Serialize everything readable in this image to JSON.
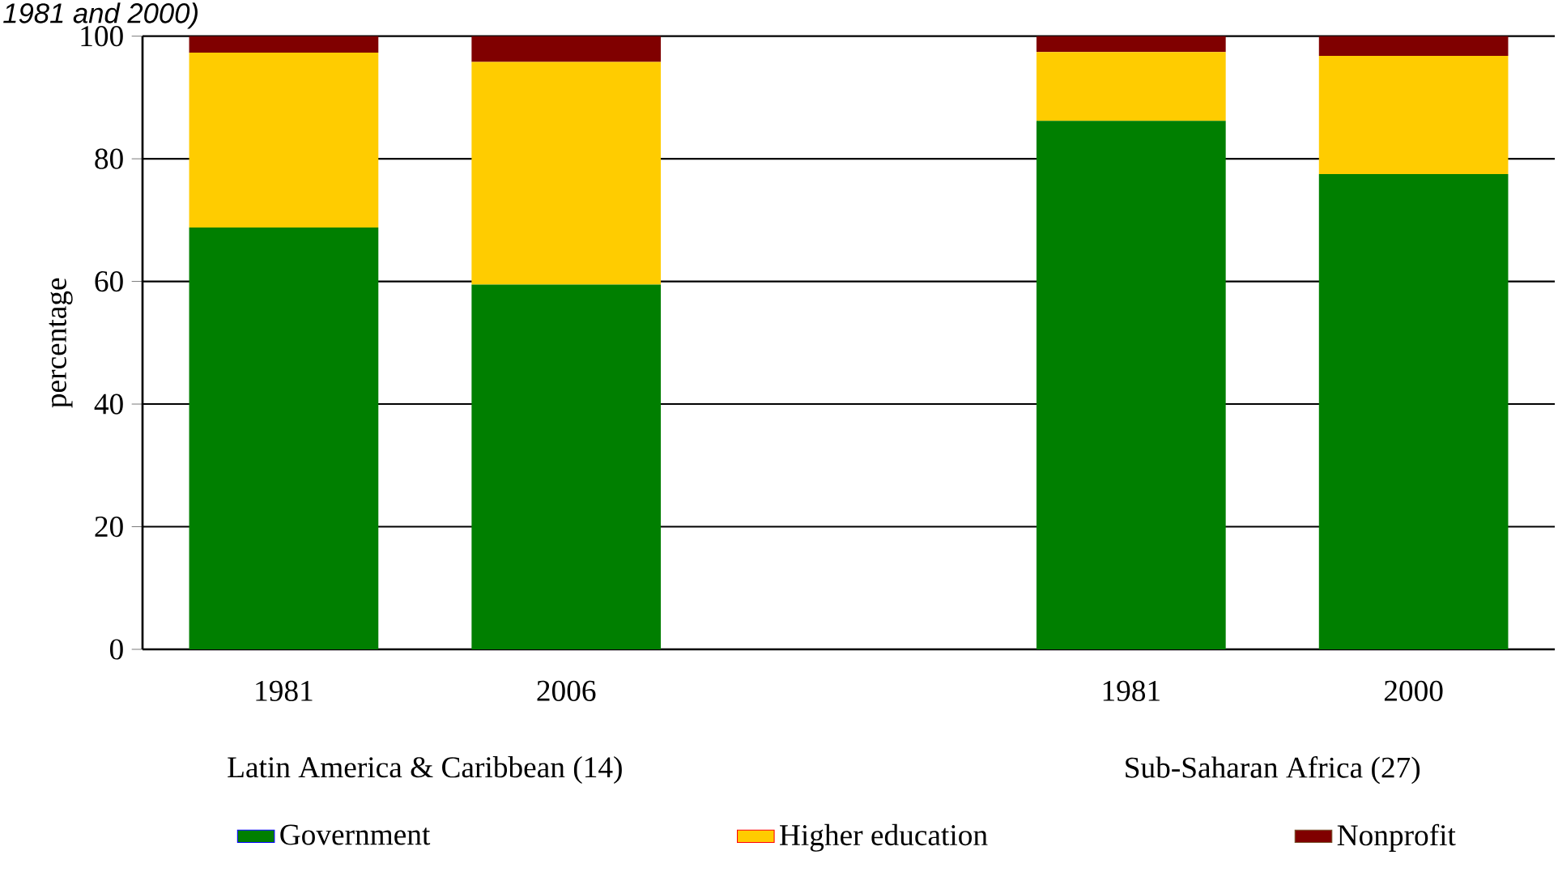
{
  "chart_data": {
    "type": "bar",
    "title": "1981 and 2000)",
    "ylabel": "percentage",
    "stacked": true,
    "categories": [
      "1981",
      "2006",
      null,
      "1981",
      "2000"
    ],
    "series": [
      {
        "name": "Government",
        "color": "#007f00",
        "values": [
          68.8,
          59.5,
          null,
          86.2,
          77.5
        ]
      },
      {
        "name": "Higher education",
        "color": "#ffcc00",
        "values": [
          28.5,
          36.3,
          null,
          11.2,
          19.3
        ]
      },
      {
        "name": "Nonprofit",
        "color": "#800000",
        "values": [
          2.7,
          4.2,
          null,
          2.6,
          3.2
        ]
      }
    ],
    "annotations": [
      "Latin America & Caribbean (14)",
      "Sub-Saharan Africa (27)"
    ],
    "ylim": [
      0,
      100
    ],
    "yticks": [
      0,
      20,
      40,
      60,
      80,
      100
    ],
    "grid": "y",
    "legend": "bottom"
  }
}
